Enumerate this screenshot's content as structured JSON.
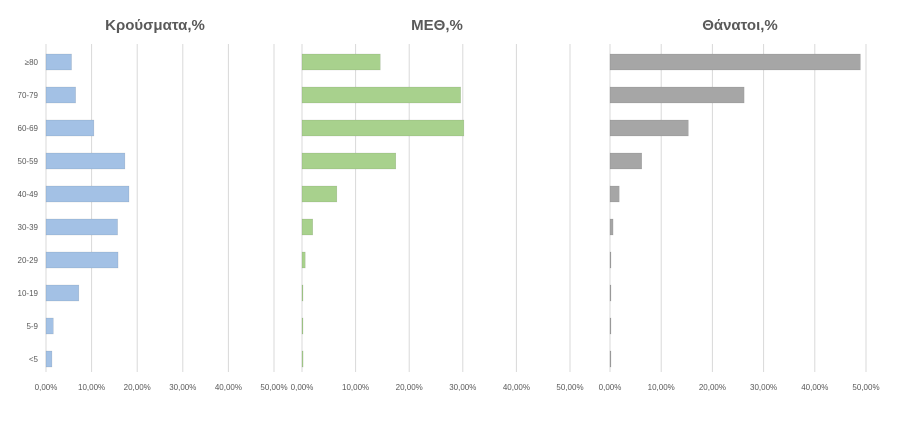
{
  "chart_data": [
    {
      "type": "bar",
      "orientation": "horizontal",
      "title": "Κρούσματα,%",
      "categories": [
        "≥80",
        "70-79",
        "60-69",
        "50-59",
        "40-49",
        "30-39",
        "20-29",
        "10-19",
        "5-9",
        "<5"
      ],
      "values": [
        5.6,
        6.5,
        10.5,
        17.3,
        18.2,
        15.7,
        15.8,
        7.2,
        1.6,
        1.3
      ],
      "xlim": [
        0,
        50
      ],
      "x_ticks": [
        "0,00%",
        "10,00%",
        "20,00%",
        "30,00%",
        "40,00%",
        "50,00%"
      ],
      "color": "#a3c1e5",
      "grid": true
    },
    {
      "type": "bar",
      "orientation": "horizontal",
      "title": "ΜΕΘ,%",
      "categories": [
        "≥80",
        "70-79",
        "60-69",
        "50-59",
        "40-49",
        "30-39",
        "20-29",
        "10-19",
        "5-9",
        "<5"
      ],
      "values": [
        14.6,
        29.6,
        30.2,
        17.5,
        6.5,
        2.0,
        0.6,
        0.1,
        0.0,
        0.2
      ],
      "xlim": [
        0,
        50
      ],
      "x_ticks": [
        "0,00%",
        "10,00%",
        "20,00%",
        "30,00%",
        "40,00%",
        "50,00%"
      ],
      "color": "#a8d18d",
      "grid": true
    },
    {
      "type": "bar",
      "orientation": "horizontal",
      "title": "Θάνατοι,%",
      "categories": [
        "≥80",
        "70-79",
        "60-69",
        "50-59",
        "40-49",
        "30-39",
        "20-29",
        "10-19",
        "5-9",
        "<5"
      ],
      "values": [
        48.9,
        26.2,
        15.3,
        6.2,
        1.8,
        0.6,
        0.1,
        0.0,
        0.0,
        0.0
      ],
      "xlim": [
        0,
        50
      ],
      "x_ticks": [
        "0,00%",
        "10,00%",
        "20,00%",
        "30,00%",
        "40,00%",
        "50,00%"
      ],
      "color": "#a6a6a6",
      "grid": true
    }
  ]
}
